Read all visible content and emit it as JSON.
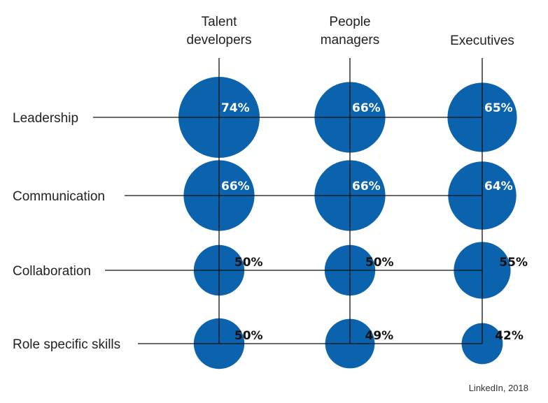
{
  "chart_data": {
    "type": "bubble-matrix",
    "columns": [
      [
        "Talent",
        "developers"
      ],
      [
        "People",
        "managers"
      ],
      [
        "Executives"
      ]
    ],
    "rows": [
      "Leadership",
      "Communication",
      "Collaboration",
      "Role specific skills"
    ],
    "values": [
      [
        74,
        66,
        65
      ],
      [
        66,
        66,
        64
      ],
      [
        50,
        50,
        55
      ],
      [
        50,
        49,
        42
      ]
    ],
    "unit": "%",
    "colors": {
      "bubble": "#0b63ad",
      "inside_label": "#ffffff",
      "outside_label": "#111111",
      "line": "#111111"
    }
  },
  "source": "LinkedIn, 2018"
}
